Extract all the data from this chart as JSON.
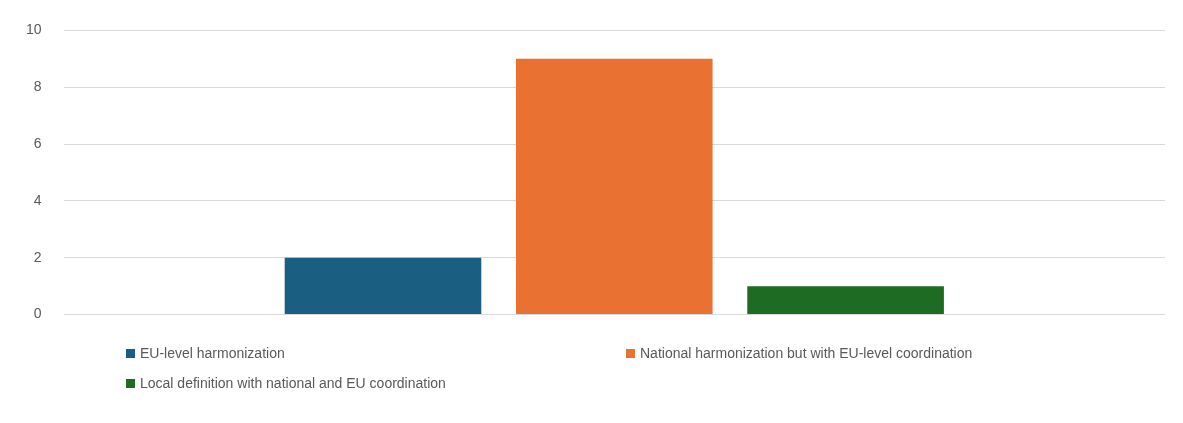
{
  "chart_data": {
    "type": "bar",
    "categories": [
      null
    ],
    "series": [
      {
        "name": "EU-level harmonization",
        "color": "#1a5e82",
        "values": [
          2
        ]
      },
      {
        "name": "National harmonization but with EU-level coordination",
        "color": "#e97132",
        "values": [
          9
        ]
      },
      {
        "name": "Local definition with national and EU coordination",
        "color": "#1e6b24",
        "values": [
          1
        ]
      }
    ],
    "ylim": [
      0,
      10
    ],
    "yticks": [
      0,
      2,
      4,
      6,
      8,
      10
    ],
    "grid": "y",
    "legend": "bottom"
  }
}
